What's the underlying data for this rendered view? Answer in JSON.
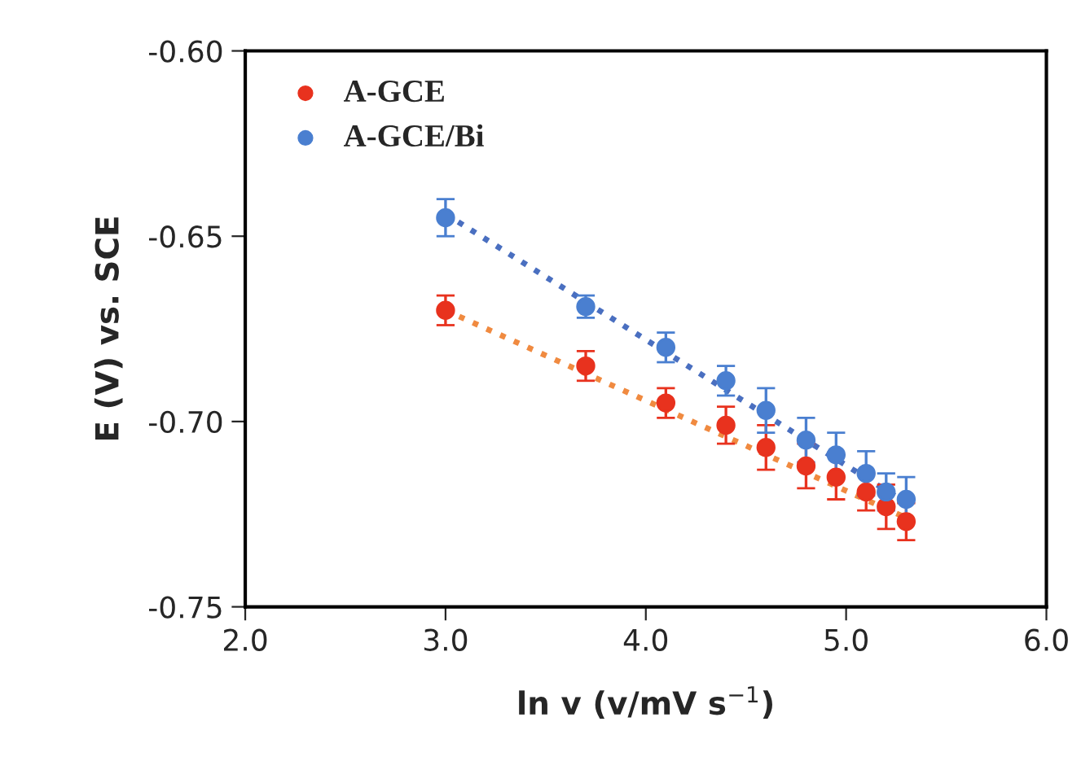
{
  "chart_data": {
    "type": "scatter",
    "xlabel": "ln v (v/mV s$^{−1}$)",
    "ylabel": "E (V) vs. SCE",
    "xlim": [
      2.0,
      6.0
    ],
    "xticks": [
      {
        "value": 2.0,
        "label": "2.0"
      },
      {
        "value": 3.0,
        "label": "3.0"
      },
      {
        "value": 4.0,
        "label": "4.0"
      },
      {
        "value": 5.0,
        "label": "5.0"
      },
      {
        "value": 6.0,
        "label": "6.0"
      }
    ],
    "ylim": [
      -0.75,
      -0.6
    ],
    "yticks": [
      {
        "value": -0.75,
        "label": "-0.75"
      },
      {
        "value": -0.7,
        "label": "-0.70"
      },
      {
        "value": -0.65,
        "label": "-0.65"
      },
      {
        "value": -0.6,
        "label": "-0.60"
      }
    ],
    "grid": false,
    "legend": "top left",
    "marker": "circle",
    "series": [
      {
        "name": "A-GCE",
        "color": "#e8321e",
        "x": [
          3.0,
          3.7,
          4.1,
          4.4,
          4.6,
          4.8,
          4.95,
          5.1,
          5.2,
          5.3
        ],
        "values": [
          -0.67,
          -0.685,
          -0.695,
          -0.701,
          -0.707,
          -0.712,
          -0.715,
          -0.719,
          -0.723,
          -0.727
        ],
        "errors": [
          0.004,
          0.004,
          0.004,
          0.005,
          0.006,
          0.006,
          0.006,
          0.005,
          0.006,
          0.005
        ]
      },
      {
        "name": "A-GCE/Bi",
        "color": "#4a7fd0",
        "x": [
          3.0,
          3.7,
          4.1,
          4.4,
          4.6,
          4.8,
          4.95,
          5.1,
          5.2,
          5.3
        ],
        "values": [
          -0.645,
          -0.669,
          -0.68,
          -0.689,
          -0.697,
          -0.705,
          -0.709,
          -0.714,
          -0.719,
          -0.721
        ],
        "errors": [
          0.005,
          0.003,
          0.004,
          0.004,
          0.006,
          0.006,
          0.006,
          0.006,
          0.005,
          0.006
        ]
      },
      {
        "type": "line",
        "line_style": "dotted",
        "marker": "none",
        "color": "#f08a40",
        "x": [
          3.0,
          5.3
        ],
        "values": [
          -0.67,
          -0.726
        ]
      },
      {
        "type": "line",
        "line_style": "dotted",
        "marker": "none",
        "color": "#4a6fc0",
        "x": [
          3.0,
          5.3
        ],
        "values": [
          -0.644,
          -0.722
        ]
      }
    ]
  }
}
